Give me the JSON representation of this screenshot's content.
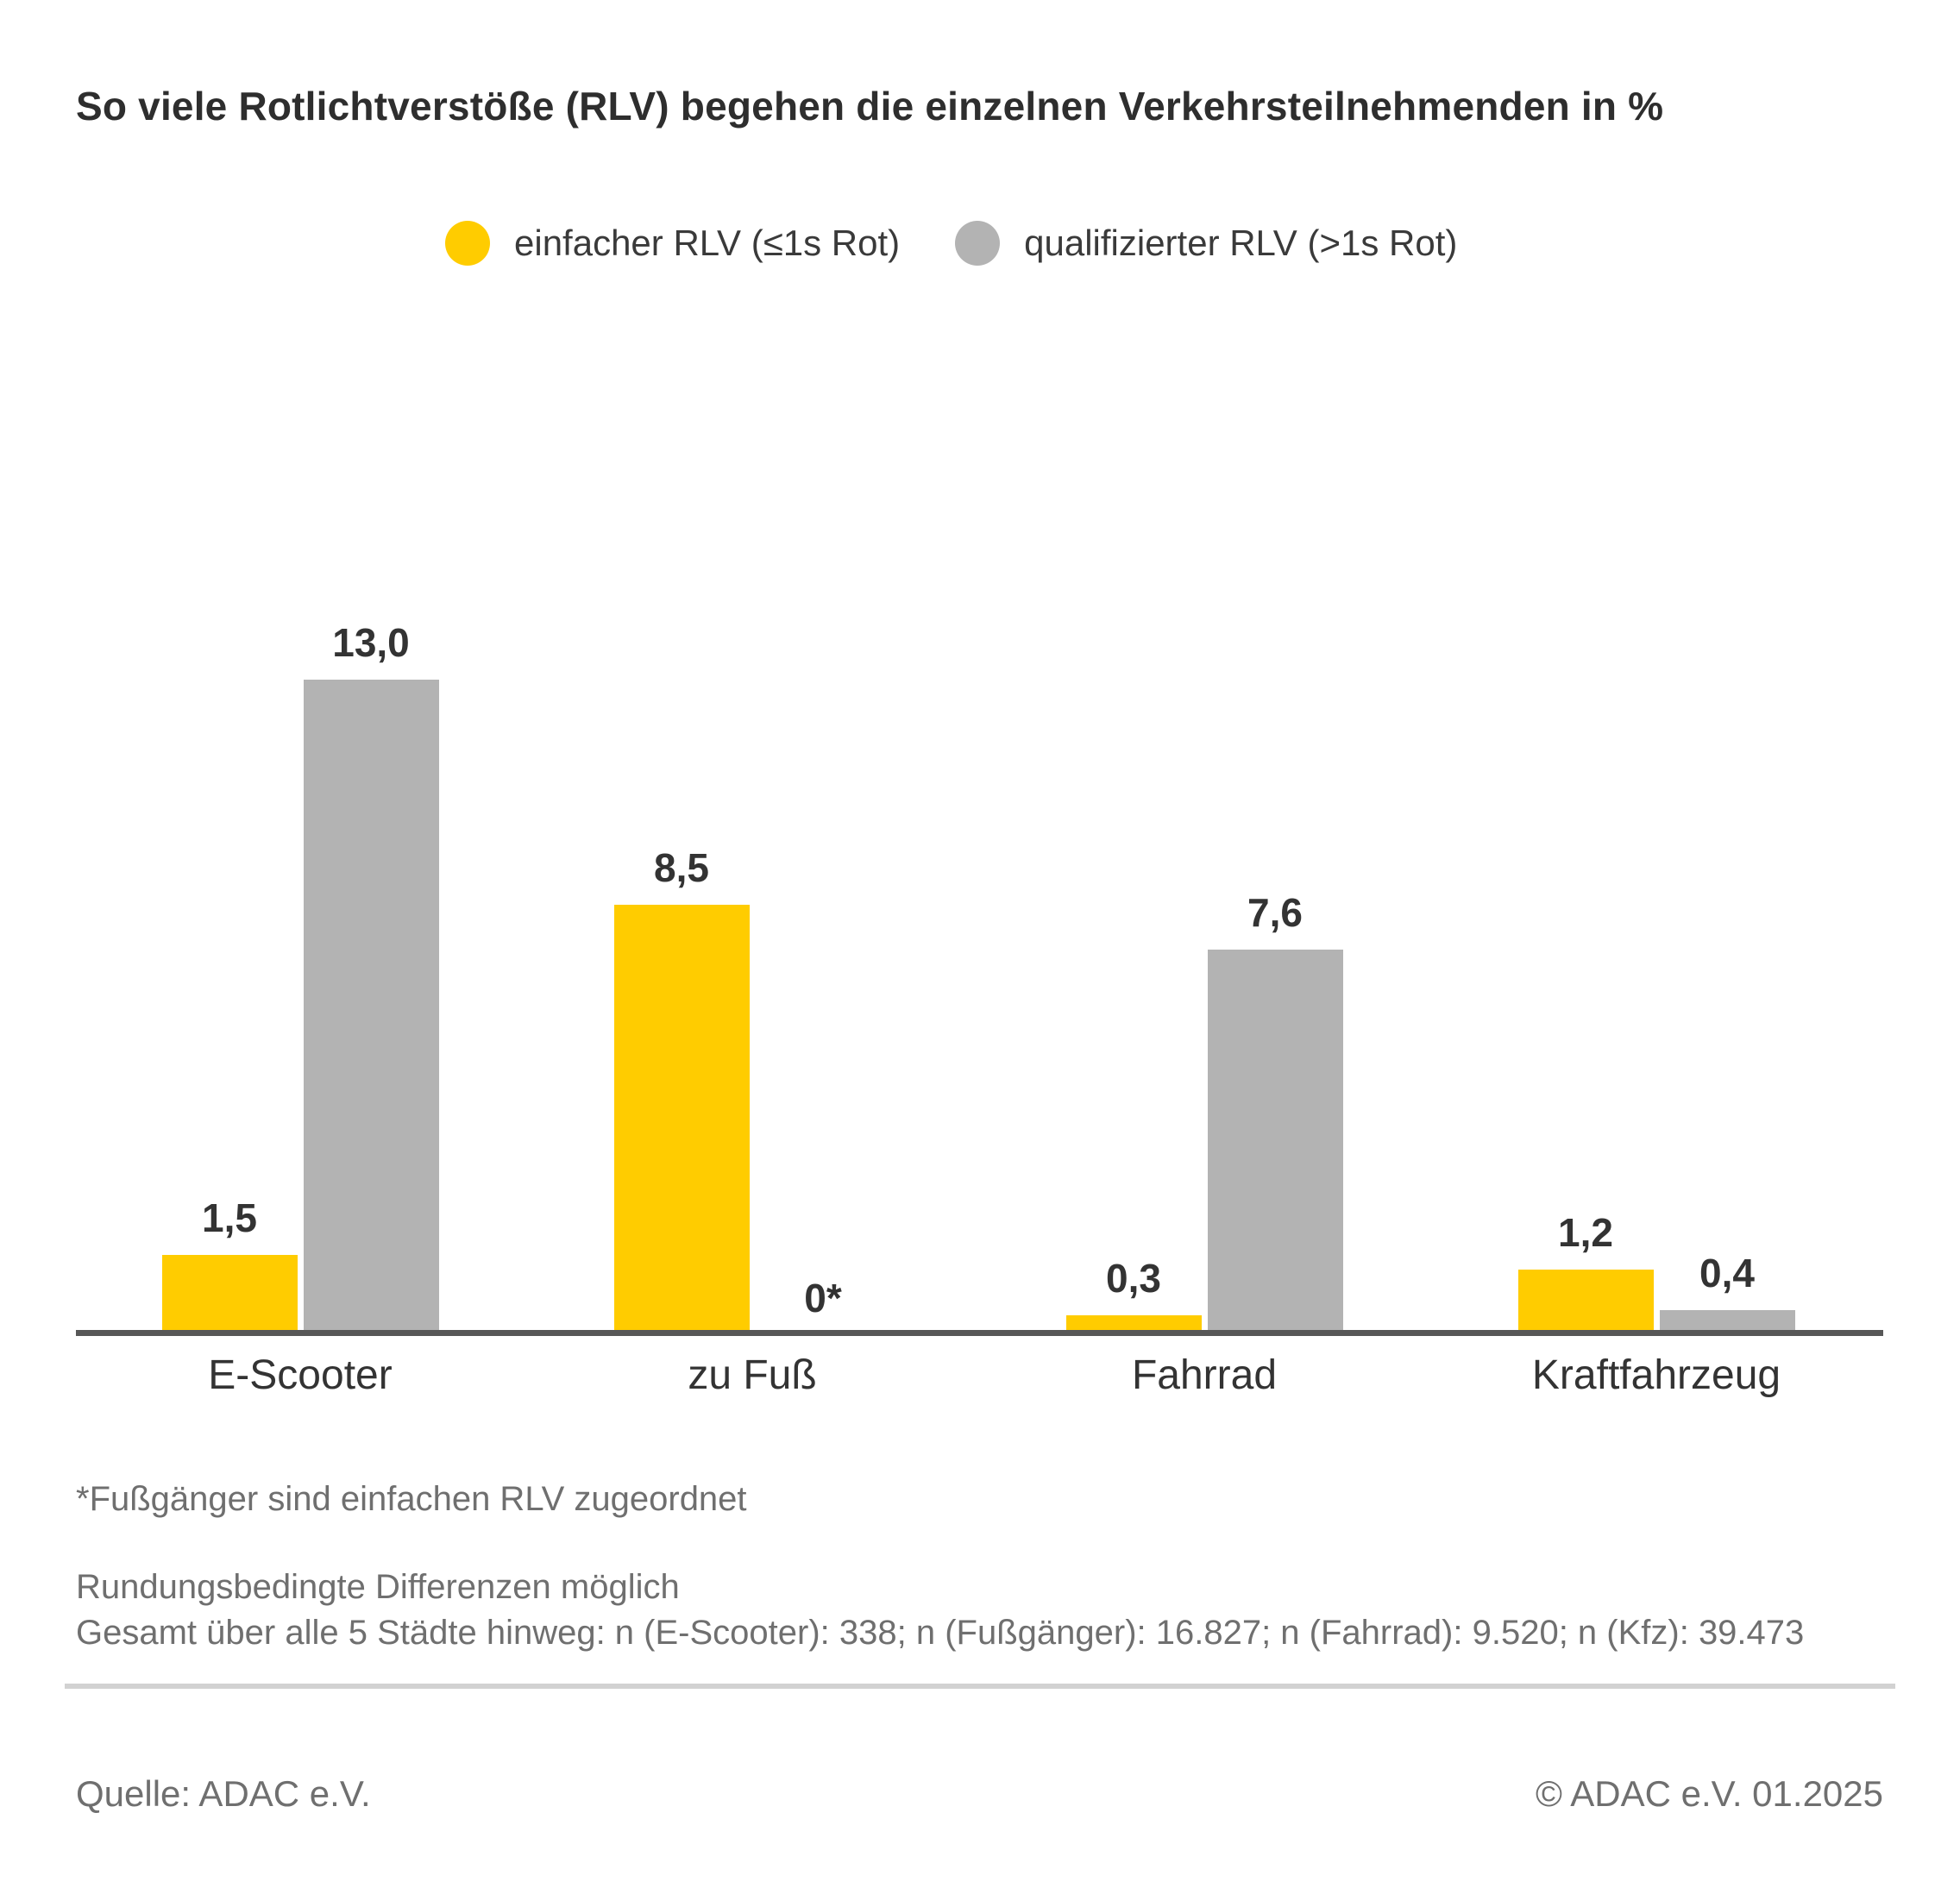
{
  "title": "So viele Rotlichtverstöße (RLV) begehen die einzelnen Verkehrsteilnehmenden in %",
  "legend": [
    {
      "label": "einfacher RLV (≤1s Rot)",
      "color": "#FFCC00"
    },
    {
      "label": "qualifizierter RLV (>1s Rot)",
      "color": "#B3B3B3"
    }
  ],
  "chart_data": {
    "type": "bar",
    "categories": [
      "E-Scooter",
      "zu Fuß",
      "Fahrrad",
      "Kraftfahrzeug"
    ],
    "series": [
      {
        "name": "einfacher RLV (≤1s Rot)",
        "color": "#FFCC00",
        "values": [
          1.5,
          8.5,
          0.3,
          1.2
        ],
        "labels": [
          "1,5",
          "8,5",
          "0,3",
          "1,2"
        ]
      },
      {
        "name": "qualifizierter RLV (>1s Rot)",
        "color": "#B3B3B3",
        "values": [
          13.0,
          0,
          7.6,
          0.4
        ],
        "labels": [
          "13,0",
          "0*",
          "7,6",
          "0,4"
        ]
      }
    ],
    "unit": "%",
    "ylim": [
      0,
      13.5
    ],
    "grid": false,
    "legend_position": "top",
    "value_labels": true
  },
  "footnotes": {
    "asterisk": "*Fußgänger sind einfachen RLV zugeordnet",
    "rounding": "Rundungsbedingte Differenzen möglich",
    "totals": "Gesamt über alle 5 Städte hinweg: n (E-Scooter): 338; n (Fußgänger): 16.827; n (Fahrrad): 9.520; n (Kfz): 39.473"
  },
  "footer": {
    "source": "Quelle: ADAC e.V.",
    "copyright": "© ADAC e.V. 01.2025"
  },
  "colors": {
    "accent_yellow": "#FFCC00",
    "bar_gray": "#B3B3B3",
    "axis": "#575757",
    "text_dark": "#333333",
    "text_muted": "#6F6F6F",
    "divider": "#D2D2D2"
  }
}
